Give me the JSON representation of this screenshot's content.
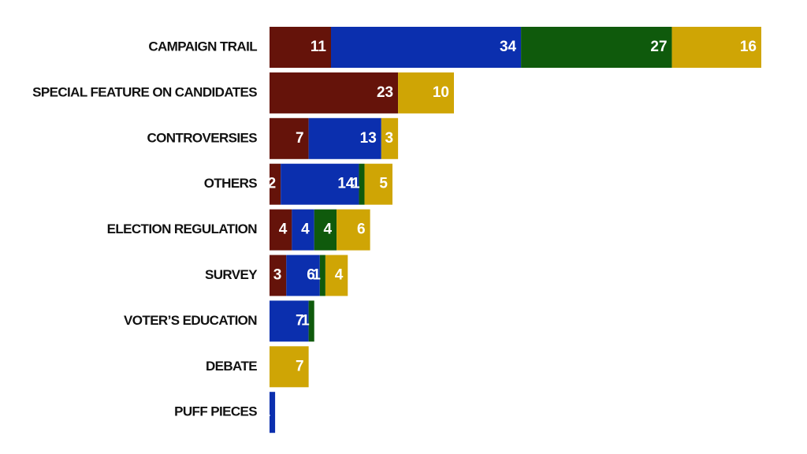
{
  "chart_data": {
    "type": "stacked-bar-horizontal",
    "categories": [
      "CAMPAIGN TRAIL",
      "SPECIAL FEATURE ON CANDIDATES",
      "CONTROVERSIES",
      "OTHERS",
      "ELECTION REGULATION",
      "SURVEY",
      "VOTER’S EDUCATION",
      "DEBATE",
      "PUFF PIECES"
    ],
    "series": [
      {
        "color": "#65130a",
        "values": [
          11,
          23,
          7,
          2,
          4,
          3,
          null,
          null,
          null
        ]
      },
      {
        "color": "#0b2fae",
        "values": [
          34,
          null,
          13,
          14,
          4,
          6,
          7,
          null,
          1
        ]
      },
      {
        "color": "#0f5a0c",
        "values": [
          27,
          null,
          null,
          1,
          4,
          1,
          1,
          null,
          null
        ]
      },
      {
        "color": "#cfa505",
        "values": [
          16,
          10,
          3,
          5,
          6,
          4,
          null,
          7,
          null
        ]
      }
    ]
  }
}
